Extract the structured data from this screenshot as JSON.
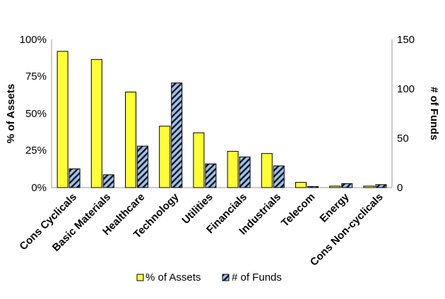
{
  "chart_data": {
    "type": "bar",
    "categories": [
      "Cons Cyclicals",
      "Basic Materials",
      "Healthcare",
      "Technology",
      "Utilities",
      "Financials",
      "Industrials",
      "Telecom",
      "Energy",
      "Cons Non-cyclicals"
    ],
    "series": [
      {
        "name": "% of Assets",
        "axis": "left",
        "color": "#ffff33",
        "values": [
          92,
          86.5,
          64.5,
          41.5,
          37,
          24.5,
          23,
          3.5,
          1,
          1
        ]
      },
      {
        "name": "# of Funds",
        "axis": "right",
        "color": "#9ec3e6",
        "pattern": "diagonal-stripes",
        "values": [
          19,
          13,
          42,
          106,
          24,
          31,
          22,
          1,
          4,
          3
        ]
      }
    ],
    "ylabel": "% of Assets",
    "y2label": "# of Funds",
    "ylim": [
      0,
      100
    ],
    "y2lim": [
      0,
      150
    ],
    "yticks": [
      "0%",
      "25%",
      "50%",
      "75%",
      "100%"
    ],
    "y2ticks": [
      "0",
      "50",
      "100",
      "150"
    ],
    "grid": false,
    "legend_position": "bottom",
    "legend": [
      {
        "label": "% of Assets"
      },
      {
        "label": "# of Funds"
      }
    ]
  }
}
